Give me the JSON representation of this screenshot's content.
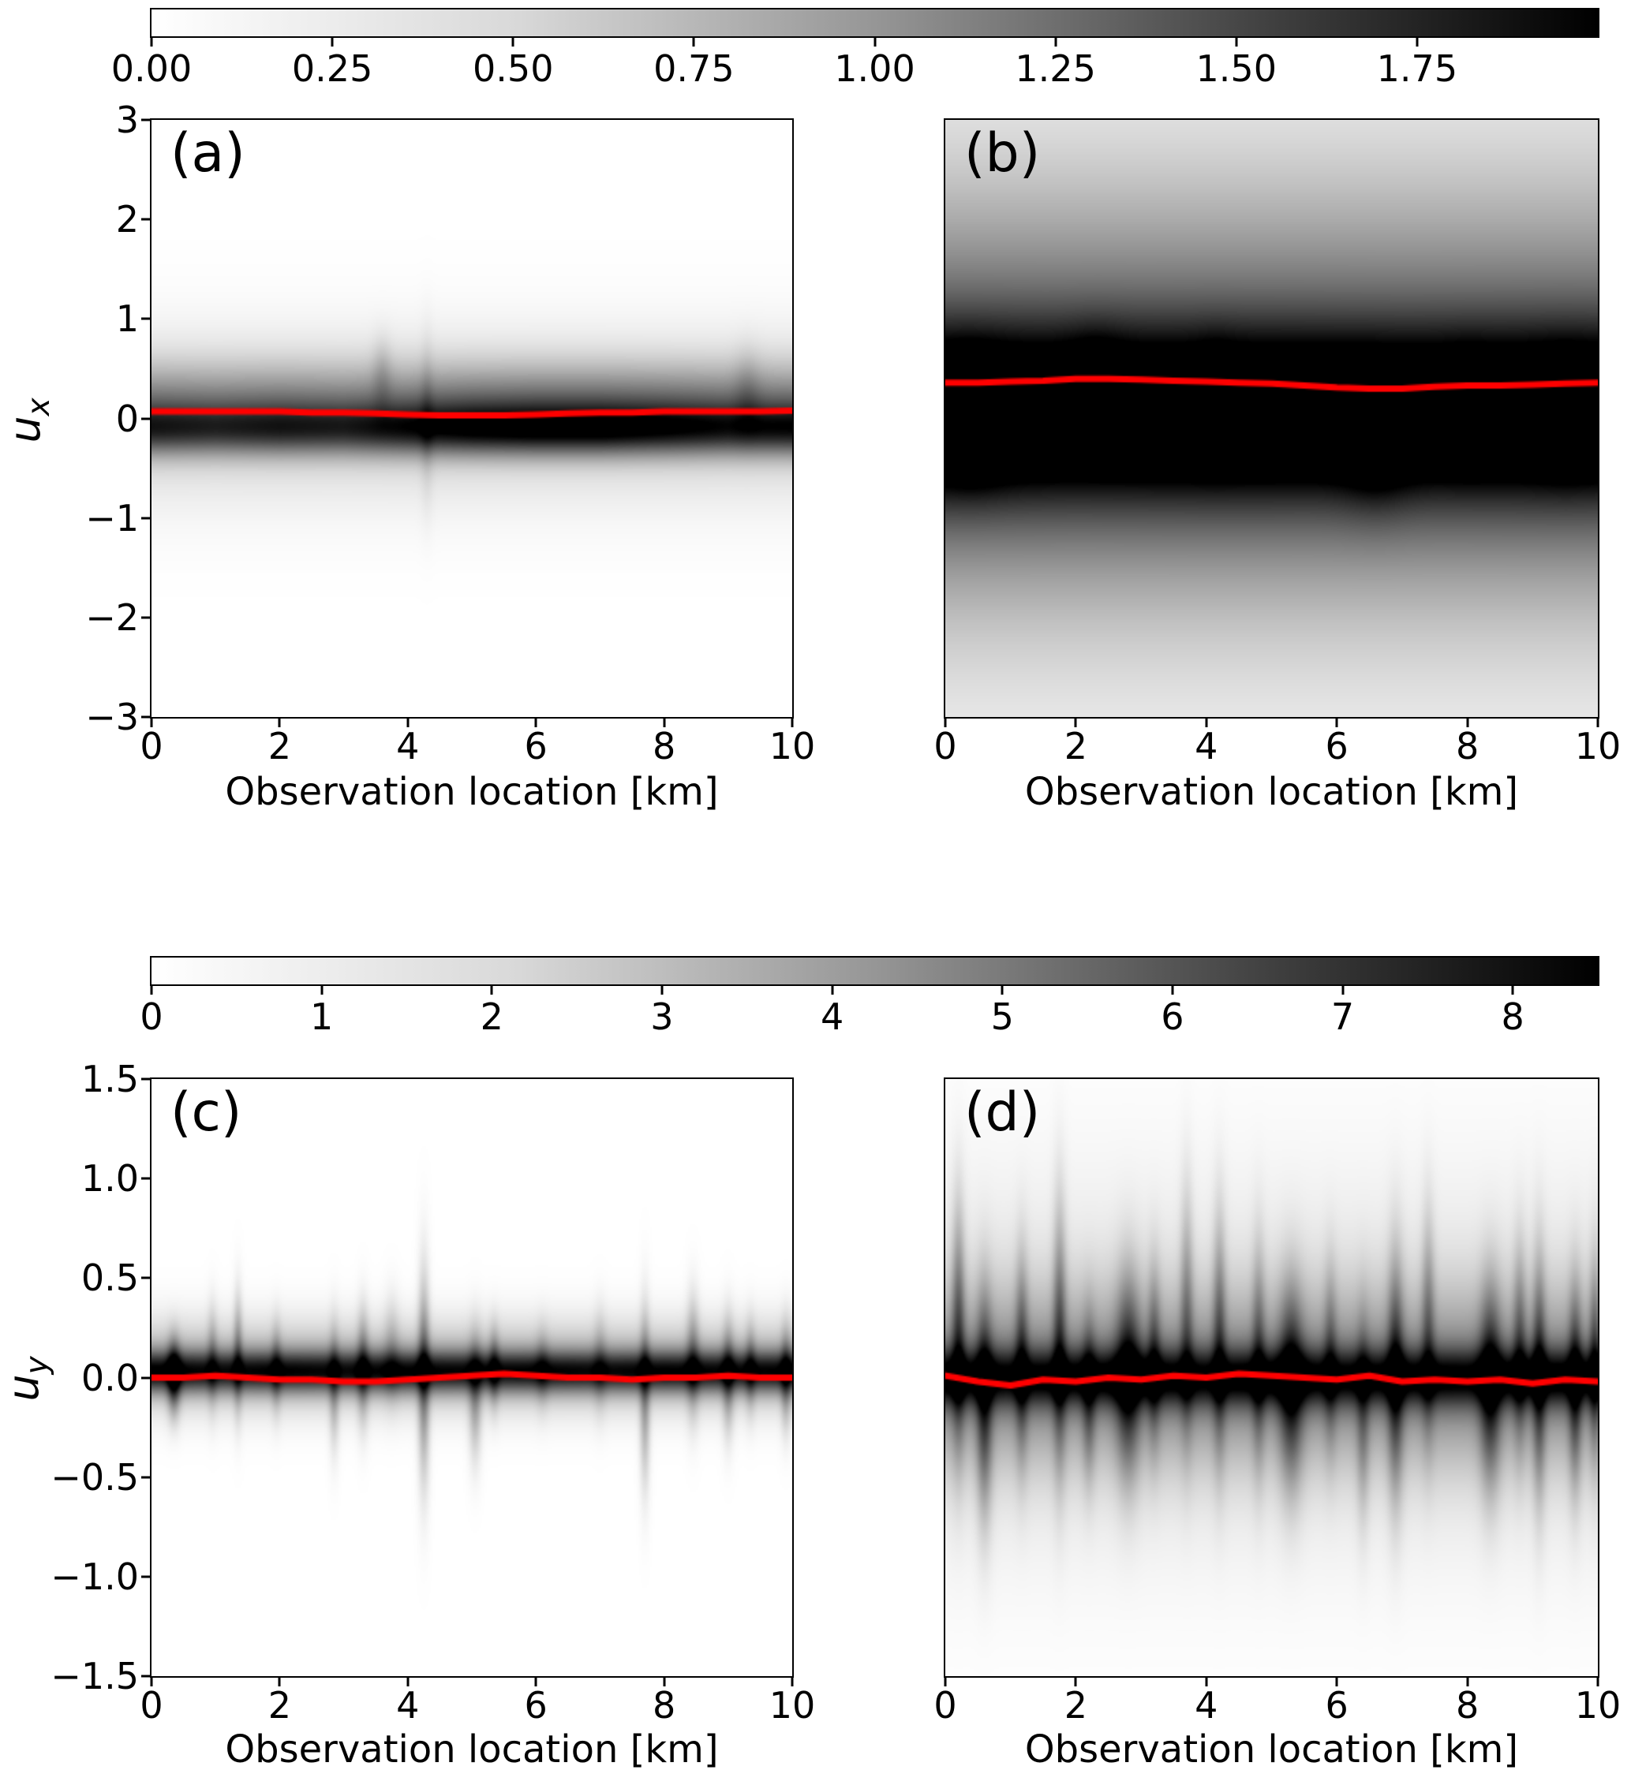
{
  "figure": {
    "background": "#ffffff",
    "red_line_color": "#ff0000",
    "axis_color": "#000000",
    "colormap_name": "Greys (white to black)"
  },
  "colorbars": [
    {
      "id": "top",
      "orientation": "horizontal",
      "vmin": 0.0,
      "vmax": 2.0,
      "tick_values": [
        0.0,
        0.25,
        0.5,
        0.75,
        1.0,
        1.25,
        1.5,
        1.75
      ],
      "tick_labels": [
        "0.00",
        "0.25",
        "0.50",
        "0.75",
        "1.00",
        "1.25",
        "1.50",
        "1.75"
      ],
      "gradient_stops": [
        "#ffffff 0%",
        "#d9d9d9 25%",
        "#969696 50%",
        "#474747 75%",
        "#000000 100%"
      ]
    },
    {
      "id": "bottom",
      "orientation": "horizontal",
      "vmin": 0.0,
      "vmax": 8.5,
      "tick_values": [
        0,
        1,
        2,
        3,
        4,
        5,
        6,
        7,
        8
      ],
      "tick_labels": [
        "0",
        "1",
        "2",
        "3",
        "4",
        "5",
        "6",
        "7",
        "8"
      ],
      "gradient_stops": [
        "#ffffff 0%",
        "#d9d9d9 25%",
        "#969696 50%",
        "#474747 75%",
        "#000000 100%"
      ]
    }
  ],
  "chart_data": [
    {
      "type": "heatmap",
      "id": "a",
      "label": "(a)",
      "xlabel": "Observation location [km]",
      "ylabel_base": "u",
      "ylabel_sub": "x",
      "colorbar_id": "top",
      "xlim": [
        0,
        10
      ],
      "ylim": [
        -3,
        3
      ],
      "xticks": {
        "values": [
          0,
          2,
          4,
          6,
          8,
          10
        ],
        "labels": [
          "0",
          "2",
          "4",
          "6",
          "8",
          "10"
        ]
      },
      "yticks": {
        "values": [
          3,
          2,
          1,
          0,
          -1,
          -2,
          -3
        ],
        "labels": [
          "3",
          "2",
          "1",
          "0",
          "−1",
          "−2",
          "−3"
        ]
      },
      "red_line": {
        "x_start": 0,
        "x_end": 10,
        "y": [
          0.07,
          0.07,
          0.07,
          0.07,
          0.07,
          0.06,
          0.06,
          0.05,
          0.04,
          0.03,
          0.03,
          0.03,
          0.04,
          0.05,
          0.06,
          0.06,
          0.07,
          0.07,
          0.07,
          0.07,
          0.08
        ]
      },
      "density": {
        "bands": [
          {
            "cy": 0.12,
            "sy": 0.4,
            "amp": 0.5,
            "profile": [
              0.75,
              0.72,
              0.75,
              0.72,
              0.78,
              0.85,
              0.88,
              0.88,
              0.85,
              0.8,
              0.78
            ]
          },
          {
            "cy": -0.12,
            "sy": 0.24,
            "amp": 0.62,
            "profile": [
              0.8,
              0.75,
              0.8,
              0.78,
              0.9,
              1.0,
              1.05,
              1.05,
              0.95,
              0.85,
              0.9
            ]
          },
          {
            "cy": 0.0,
            "sy": 0.85,
            "amp": 0.16
          }
        ],
        "streaks": [
          {
            "cx": 4.3,
            "sx": 0.1,
            "cy": -0.05,
            "sy": 0.8,
            "amp": 0.1
          },
          {
            "cx": 3.6,
            "sx": 0.15,
            "cy": 0.45,
            "sy": 0.35,
            "amp": 0.12
          },
          {
            "cx": 9.3,
            "sx": 0.2,
            "cy": 0.3,
            "sy": 0.4,
            "amp": 0.1
          }
        ]
      }
    },
    {
      "type": "heatmap",
      "id": "b",
      "label": "(b)",
      "xlabel": "Observation location [km]",
      "colorbar_id": "top",
      "xlim": [
        0,
        10
      ],
      "ylim": [
        -3,
        3
      ],
      "xticks": {
        "values": [
          0,
          2,
          4,
          6,
          8,
          10
        ],
        "labels": [
          "0",
          "2",
          "4",
          "6",
          "8",
          "10"
        ]
      },
      "yticks": {
        "values": [],
        "labels": []
      },
      "red_line": {
        "x_start": 0,
        "x_end": 10,
        "y": [
          0.36,
          0.36,
          0.37,
          0.38,
          0.4,
          0.4,
          0.39,
          0.38,
          0.37,
          0.36,
          0.35,
          0.33,
          0.31,
          0.3,
          0.3,
          0.32,
          0.33,
          0.33,
          0.34,
          0.35,
          0.36
        ]
      },
      "density": {
        "bands": [
          {
            "cy": 0.05,
            "sy": 0.75,
            "amp": 0.8,
            "profile": [
              1.0,
              0.97,
              0.93,
              0.95,
              0.97,
              0.97,
              0.95,
              0.92,
              0.94,
              0.97,
              0.97
            ]
          },
          {
            "cy": -0.3,
            "sy": 1.5,
            "amp": 0.33
          },
          {
            "cy": 0.7,
            "sy": 1.7,
            "amp": 0.28
          },
          {
            "cy": 0.0,
            "sy": 3.0,
            "amp": 0.22
          }
        ],
        "streaks": [
          {
            "cx": 0.4,
            "sx": 0.5,
            "cy": 0.0,
            "sy": 0.55,
            "amp": 0.28
          },
          {
            "cx": 2.3,
            "sx": 0.45,
            "cy": 0.35,
            "sy": 0.5,
            "amp": 0.15
          },
          {
            "cx": 4.15,
            "sx": 0.3,
            "cy": 0.2,
            "sy": 0.5,
            "amp": 0.12
          },
          {
            "cx": 6.6,
            "sx": 0.5,
            "cy": -0.3,
            "sy": 0.6,
            "amp": 0.15
          },
          {
            "cx": 8.0,
            "sx": 0.35,
            "cy": 0.1,
            "sy": 0.5,
            "amp": 0.1
          },
          {
            "cx": 9.5,
            "sx": 0.4,
            "cy": 0.05,
            "sy": 0.55,
            "amp": 0.12
          }
        ]
      }
    },
    {
      "type": "heatmap",
      "id": "c",
      "label": "(c)",
      "xlabel": "Observation location [km]",
      "ylabel_base": "u",
      "ylabel_sub": "y",
      "colorbar_id": "bottom",
      "xlim": [
        0,
        10
      ],
      "ylim": [
        -1.5,
        1.5
      ],
      "xticks": {
        "values": [
          0,
          2,
          4,
          6,
          8,
          10
        ],
        "labels": [
          "0",
          "2",
          "4",
          "6",
          "8",
          "10"
        ]
      },
      "yticks": {
        "values": [
          1.5,
          1.0,
          0.5,
          0.0,
          -0.5,
          -1.0,
          -1.5
        ],
        "labels": [
          "1.5",
          "1.0",
          "0.5",
          "0.0",
          "−0.5",
          "−1.0",
          "−1.5"
        ]
      },
      "red_line": {
        "x_start": 0,
        "x_end": 10,
        "y": [
          0.0,
          0.0,
          0.01,
          0.0,
          -0.01,
          -0.01,
          -0.02,
          -0.02,
          -0.01,
          0.0,
          0.01,
          0.02,
          0.01,
          0.0,
          0.0,
          -0.01,
          0.0,
          0.0,
          0.01,
          0.0,
          0.0
        ]
      },
      "density": {
        "bands": [
          {
            "cy": 0.03,
            "sy": 0.1,
            "amp": 0.75,
            "profile": [
              1.0,
              0.9,
              0.95,
              0.9,
              0.95,
              0.92,
              0.95,
              0.9,
              0.95,
              0.92,
              0.95
            ]
          },
          {
            "cy": 0.06,
            "sy": 0.22,
            "amp": 0.3
          }
        ],
        "streaks": [
          {
            "cx": 0.35,
            "sx": 0.1,
            "cy": 0.0,
            "sy": 0.18,
            "amp": 0.55
          },
          {
            "cx": 0.95,
            "sx": 0.08,
            "cy": 0.1,
            "sy": 0.25,
            "amp": 0.2
          },
          {
            "cx": 1.35,
            "sx": 0.07,
            "cy": 0.12,
            "sy": 0.3,
            "amp": 0.28
          },
          {
            "cx": 1.95,
            "sx": 0.08,
            "cy": 0.05,
            "sy": 0.22,
            "amp": 0.22
          },
          {
            "cx": 2.85,
            "sx": 0.08,
            "cy": -0.05,
            "sy": 0.3,
            "amp": 0.25
          },
          {
            "cx": 3.3,
            "sx": 0.09,
            "cy": 0.05,
            "sy": 0.28,
            "amp": 0.3
          },
          {
            "cx": 3.75,
            "sx": 0.12,
            "cy": 0.15,
            "sy": 0.25,
            "amp": 0.15
          },
          {
            "cx": 4.25,
            "sx": 0.09,
            "cy": 0.0,
            "sy": 0.5,
            "amp": 0.42
          },
          {
            "cx": 5.05,
            "sx": 0.1,
            "cy": -0.1,
            "sy": 0.3,
            "amp": 0.3
          },
          {
            "cx": 5.35,
            "sx": 0.08,
            "cy": 0.05,
            "sy": 0.2,
            "amp": 0.25
          },
          {
            "cx": 6.1,
            "sx": 0.1,
            "cy": 0.05,
            "sy": 0.2,
            "amp": 0.15
          },
          {
            "cx": 7.0,
            "sx": 0.1,
            "cy": 0.08,
            "sy": 0.25,
            "amp": 0.15
          },
          {
            "cx": 7.7,
            "sx": 0.08,
            "cy": -0.1,
            "sy": 0.42,
            "amp": 0.33
          },
          {
            "cx": 8.45,
            "sx": 0.1,
            "cy": 0.1,
            "sy": 0.3,
            "amp": 0.28
          },
          {
            "cx": 9.0,
            "sx": 0.09,
            "cy": 0.0,
            "sy": 0.28,
            "amp": 0.3
          },
          {
            "cx": 9.35,
            "sx": 0.08,
            "cy": 0.05,
            "sy": 0.22,
            "amp": 0.22
          },
          {
            "cx": 9.9,
            "sx": 0.08,
            "cy": 0.0,
            "sy": 0.25,
            "amp": 0.3
          }
        ]
      }
    },
    {
      "type": "heatmap",
      "id": "d",
      "label": "(d)",
      "xlabel": "Observation location [km]",
      "colorbar_id": "bottom",
      "xlim": [
        0,
        10
      ],
      "ylim": [
        -1.5,
        1.5
      ],
      "xticks": {
        "values": [
          0,
          2,
          4,
          6,
          8,
          10
        ],
        "labels": [
          "0",
          "2",
          "4",
          "6",
          "8",
          "10"
        ]
      },
      "yticks": {
        "values": [],
        "labels": []
      },
      "red_line": {
        "x_start": 0,
        "x_end": 10,
        "y": [
          0.01,
          -0.02,
          -0.04,
          -0.01,
          -0.02,
          0.0,
          -0.01,
          0.01,
          0.0,
          0.02,
          0.01,
          0.0,
          -0.01,
          0.01,
          -0.02,
          -0.01,
          -0.02,
          -0.01,
          -0.03,
          -0.01,
          -0.02
        ]
      },
      "density": {
        "bands": [
          {
            "cy": 0.0,
            "sy": 0.14,
            "amp": 0.65,
            "profile": [
              1.0,
              0.9,
              0.95,
              1.0,
              0.9,
              1.0,
              0.9,
              0.95,
              0.9,
              1.0,
              0.95
            ]
          },
          {
            "cy": 0.0,
            "sy": 0.42,
            "amp": 0.38
          },
          {
            "cy": 0.05,
            "sy": 0.95,
            "amp": 0.12
          }
        ],
        "streaks": [
          {
            "cx": 0.2,
            "sx": 0.1,
            "cy": 0.25,
            "sy": 0.6,
            "amp": 0.4
          },
          {
            "cx": 0.6,
            "sx": 0.12,
            "cy": -0.15,
            "sy": 0.55,
            "amp": 0.45
          },
          {
            "cx": 1.17,
            "sx": 0.1,
            "cy": 0.1,
            "sy": 0.5,
            "amp": 0.35
          },
          {
            "cx": 1.75,
            "sx": 0.1,
            "cy": 0.2,
            "sy": 0.65,
            "amp": 0.4
          },
          {
            "cx": 2.2,
            "sx": 0.1,
            "cy": -0.1,
            "sy": 0.4,
            "amp": 0.3
          },
          {
            "cx": 2.8,
            "sx": 0.18,
            "cy": 0.0,
            "sy": 0.5,
            "amp": 0.5
          },
          {
            "cx": 3.2,
            "sx": 0.1,
            "cy": 0.1,
            "sy": 0.45,
            "amp": 0.3
          },
          {
            "cx": 3.7,
            "sx": 0.1,
            "cy": 0.3,
            "sy": 0.6,
            "amp": 0.3
          },
          {
            "cx": 4.2,
            "sx": 0.1,
            "cy": 0.2,
            "sy": 0.6,
            "amp": 0.35
          },
          {
            "cx": 4.8,
            "sx": 0.1,
            "cy": 0.1,
            "sy": 0.55,
            "amp": 0.3
          },
          {
            "cx": 5.3,
            "sx": 0.18,
            "cy": -0.05,
            "sy": 0.5,
            "amp": 0.5
          },
          {
            "cx": 5.9,
            "sx": 0.1,
            "cy": 0.1,
            "sy": 0.45,
            "amp": 0.25
          },
          {
            "cx": 6.4,
            "sx": 0.1,
            "cy": -0.2,
            "sy": 0.5,
            "amp": 0.25
          },
          {
            "cx": 6.9,
            "sx": 0.12,
            "cy": 0.0,
            "sy": 0.6,
            "amp": 0.45
          },
          {
            "cx": 7.4,
            "sx": 0.1,
            "cy": 0.25,
            "sy": 0.55,
            "amp": 0.3
          },
          {
            "cx": 8.35,
            "sx": 0.16,
            "cy": -0.05,
            "sy": 0.5,
            "amp": 0.5
          },
          {
            "cx": 8.8,
            "sx": 0.1,
            "cy": 0.15,
            "sy": 0.5,
            "amp": 0.3
          },
          {
            "cx": 9.1,
            "sx": 0.1,
            "cy": 0.0,
            "sy": 0.6,
            "amp": 0.4
          },
          {
            "cx": 9.65,
            "sx": 0.1,
            "cy": -0.05,
            "sy": 0.5,
            "amp": 0.4
          },
          {
            "cx": 9.95,
            "sx": 0.08,
            "cy": 0.1,
            "sy": 0.5,
            "amp": 0.3
          }
        ]
      }
    }
  ]
}
